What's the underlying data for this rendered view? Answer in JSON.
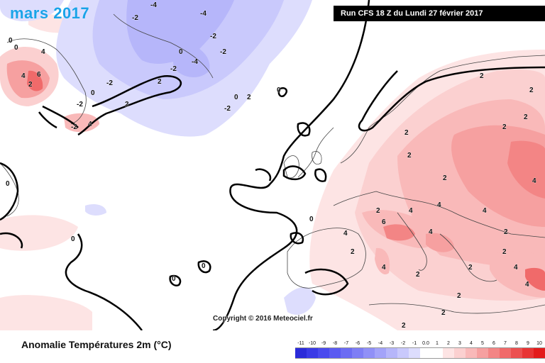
{
  "header": {
    "title": "mars 2017",
    "run_label": "Run CFS 18 Z du Lundi 27 février 2017"
  },
  "footer": {
    "caption": "Anomalie Températures 2m (°C)",
    "copyright": "Copyright © 2016 Meteociel.fr"
  },
  "legend": {
    "labels": [
      "-11",
      "-10",
      "-9",
      "-8",
      "-7",
      "-6",
      "-5",
      "-4",
      "-3",
      "-2",
      "-1",
      "0.0",
      "1",
      "2",
      "3",
      "4",
      "5",
      "6",
      "7",
      "8",
      "9",
      "10"
    ],
    "colors": [
      "#2b2bd9",
      "#3a3ae6",
      "#4a4aee",
      "#5b5bf1",
      "#6c6cf3",
      "#7e7ef5",
      "#9090f7",
      "#a3a3f9",
      "#b6b6fa",
      "#c9c9fc",
      "#ddddfd",
      "#ffffff",
      "#ffffff",
      "#fde4e4",
      "#fbd0d0",
      "#f9b9b9",
      "#f6a0a0",
      "#f38585",
      "#f06a6a",
      "#ec5050",
      "#e83434",
      "#e31a1a"
    ]
  },
  "map_labels": {
    "greenland": [
      "-4",
      "-2",
      "-4",
      "-2",
      "0",
      "4",
      "6",
      "-2",
      "-2",
      "0",
      "4",
      "2",
      "-2",
      "4"
    ],
    "north_atlantic": [
      "0",
      "-2",
      "-4",
      "-2",
      "0",
      "-2",
      "2",
      "0",
      "2",
      "0",
      "2"
    ],
    "europe": [
      "2",
      "2",
      "2",
      "2",
      "2",
      "2",
      "4",
      "2",
      "4",
      "4",
      "2",
      "4",
      "6",
      "4",
      "2",
      "2",
      "2",
      "4",
      "2",
      "2",
      "4",
      "4",
      "2",
      "2",
      "2",
      "4"
    ],
    "west_atlantic": [
      "0",
      "0",
      "0",
      "0",
      "0"
    ]
  }
}
